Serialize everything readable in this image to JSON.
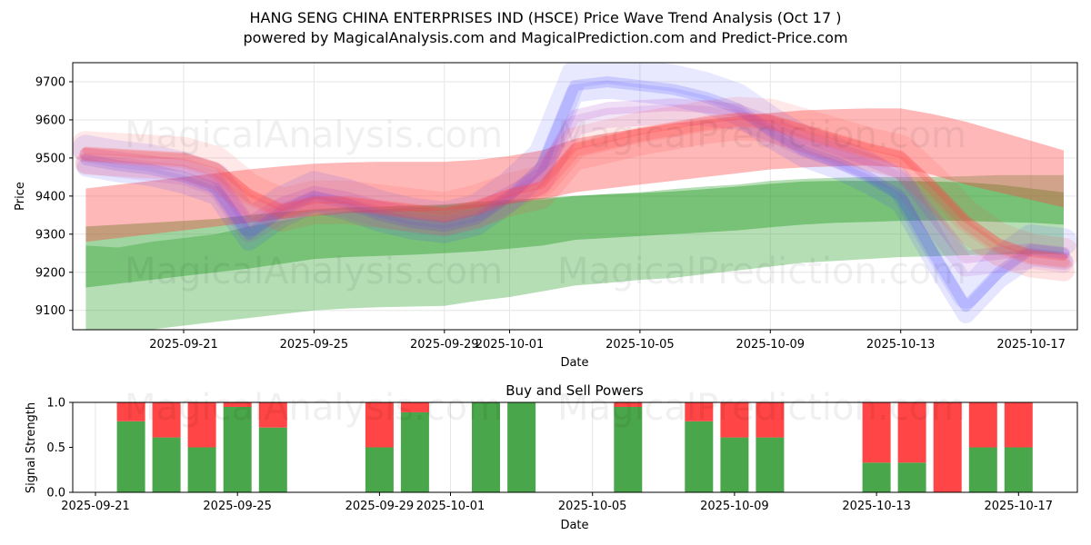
{
  "title_line1": "HANG SENG CHINA ENTERPRISES IND (HSCE) Price Wave Trend Analysis (Oct 17 )",
  "title_line2": "powered by MagicalAnalysis.com and MagicalPrediction.com and Predict-Price.com",
  "watermarks": [
    "MagicalAnalysis.com",
    "MagicalPrediction.com"
  ],
  "colors": {
    "green": "#2ca02c",
    "red": "#ff4444",
    "blue": "#4444ff",
    "bar_green": "#4aa64a",
    "bar_red": "#ff4545"
  },
  "chart_data": [
    {
      "type": "line",
      "title": "",
      "xlabel": "Date",
      "ylabel": "Price",
      "ylim": [
        9050,
        9750
      ],
      "yticks": [
        9100,
        9200,
        9300,
        9400,
        9500,
        9600,
        9700
      ],
      "xticks": [
        "2025-09-21",
        "2025-09-25",
        "2025-09-29",
        "2025-10-01",
        "2025-10-05",
        "2025-10-09",
        "2025-10-13",
        "2025-10-17"
      ],
      "grid": true,
      "x": [
        "2025-09-18",
        "2025-09-19",
        "2025-09-20",
        "2025-09-21",
        "2025-09-22",
        "2025-09-23",
        "2025-09-24",
        "2025-09-25",
        "2025-09-26",
        "2025-09-27",
        "2025-09-28",
        "2025-09-29",
        "2025-09-30",
        "2025-10-01",
        "2025-10-02",
        "2025-10-03",
        "2025-10-04",
        "2025-10-05",
        "2025-10-06",
        "2025-10-07",
        "2025-10-08",
        "2025-10-09",
        "2025-10-10",
        "2025-10-11",
        "2025-10-12",
        "2025-10-13",
        "2025-10-14",
        "2025-10-15",
        "2025-10-16",
        "2025-10-17",
        "2025-10-18"
      ],
      "series": [
        {
          "name": "green_band_lower",
          "color": "#2ca02c",
          "upper": [
            9270,
            9265,
            9280,
            9290,
            9300,
            9320,
            9335,
            9350,
            9360,
            9365,
            9370,
            9375,
            9378,
            9385,
            9390,
            9400,
            9405,
            9410,
            9418,
            9425,
            9430,
            9440,
            9445,
            9448,
            9450,
            9450,
            9450,
            9452,
            9455,
            9455,
            9455
          ],
          "lower": [
            9050,
            9040,
            9050,
            9060,
            9070,
            9080,
            9090,
            9100,
            9105,
            9108,
            9110,
            9112,
            9125,
            9135,
            9150,
            9165,
            9172,
            9180,
            9185,
            9195,
            9205,
            9215,
            9225,
            9230,
            9235,
            9240,
            9242,
            9245,
            9246,
            9248,
            9248
          ]
        },
        {
          "name": "green_band_upper",
          "color": "#2ca02c",
          "upper": [
            9320,
            9325,
            9330,
            9335,
            9340,
            9350,
            9358,
            9365,
            9370,
            9372,
            9375,
            9378,
            9385,
            9390,
            9395,
            9400,
            9405,
            9408,
            9412,
            9418,
            9425,
            9432,
            9438,
            9440,
            9440,
            9440,
            9438,
            9436,
            9430,
            9420,
            9410
          ],
          "lower": [
            9160,
            9170,
            9180,
            9190,
            9200,
            9210,
            9222,
            9235,
            9240,
            9243,
            9246,
            9250,
            9255,
            9262,
            9270,
            9285,
            9290,
            9295,
            9300,
            9305,
            9310,
            9318,
            9325,
            9330,
            9332,
            9335,
            9336,
            9335,
            9332,
            9330,
            9325
          ]
        },
        {
          "name": "red_band_wide",
          "color": "#ff4444",
          "upper": [
            9420,
            9430,
            9440,
            9450,
            9460,
            9470,
            9478,
            9485,
            9488,
            9490,
            9490,
            9490,
            9495,
            9505,
            9520,
            9550,
            9565,
            9578,
            9590,
            9600,
            9610,
            9618,
            9625,
            9628,
            9630,
            9630,
            9615,
            9595,
            9570,
            9545,
            9520
          ],
          "lower": [
            9280,
            9290,
            9300,
            9310,
            9320,
            9330,
            9340,
            9348,
            9355,
            9358,
            9360,
            9362,
            9370,
            9380,
            9392,
            9410,
            9420,
            9430,
            9440,
            9450,
            9460,
            9470,
            9475,
            9478,
            9480,
            9475,
            9455,
            9430,
            9410,
            9390,
            9370
          ]
        },
        {
          "name": "red_wave",
          "color": "#ff4444",
          "values": [
            9510,
            9505,
            9500,
            9495,
            9470,
            9400,
            9360,
            9380,
            9380,
            9370,
            9360,
            9350,
            9370,
            9400,
            9420,
            9520,
            9540,
            9560,
            9575,
            9590,
            9600,
            9595,
            9570,
            9545,
            9520,
            9500,
            9420,
            9330,
            9270,
            9240,
            9230
          ]
        },
        {
          "name": "blue_wave",
          "color": "#4444ff",
          "values": [
            9495,
            9480,
            9470,
            9450,
            9420,
            9300,
            9360,
            9400,
            9380,
            9350,
            9330,
            9320,
            9340,
            9400,
            9480,
            9690,
            9700,
            9690,
            9680,
            9660,
            9630,
            9570,
            9520,
            9490,
            9450,
            9400,
            9250,
            9110,
            9200,
            9260,
            9250
          ]
        },
        {
          "name": "purple_wave",
          "color": "#aa44cc",
          "values": [
            9500,
            9490,
            9480,
            9470,
            9440,
            9320,
            9370,
            9400,
            9385,
            9360,
            9345,
            9335,
            9355,
            9400,
            9450,
            9600,
            9620,
            9625,
            9630,
            9625,
            9615,
            9585,
            9545,
            9515,
            9485,
            9450,
            9340,
            9230,
            9240,
            9250,
            9240
          ]
        }
      ]
    },
    {
      "type": "bar",
      "title": "Buy and Sell Powers",
      "xlabel": "Date",
      "ylabel": "Signal Strength",
      "ylim": [
        0,
        1.0
      ],
      "yticks": [
        "0.0",
        "0.5",
        "1.0"
      ],
      "xticks": [
        "2025-09-21",
        "2025-09-25",
        "2025-09-29",
        "2025-10-01",
        "2025-10-05",
        "2025-10-09",
        "2025-10-13",
        "2025-10-17"
      ],
      "categories": [
        "2025-09-22",
        "2025-09-23",
        "2025-09-24",
        "2025-09-25",
        "2025-09-26",
        "2025-09-29",
        "2025-09-30",
        "2025-10-02",
        "2025-10-03",
        "2025-10-06",
        "2025-10-08",
        "2025-10-09",
        "2025-10-10",
        "2025-10-13",
        "2025-10-14",
        "2025-10-15",
        "2025-10-16",
        "2025-10-17"
      ],
      "series": [
        {
          "name": "Buy",
          "color": "#4aa64a",
          "values": [
            0.79,
            0.61,
            0.5,
            0.95,
            0.72,
            0.5,
            0.89,
            1.0,
            1.0,
            0.95,
            0.79,
            0.61,
            0.61,
            0.33,
            0.33,
            0.0,
            0.5,
            0.5
          ]
        },
        {
          "name": "Sell",
          "color": "#ff4545",
          "values": [
            0.21,
            0.39,
            0.5,
            0.05,
            0.28,
            0.5,
            0.11,
            0.0,
            0.0,
            0.05,
            0.21,
            0.39,
            0.39,
            0.67,
            0.67,
            1.0,
            0.5,
            0.5
          ]
        }
      ]
    }
  ]
}
